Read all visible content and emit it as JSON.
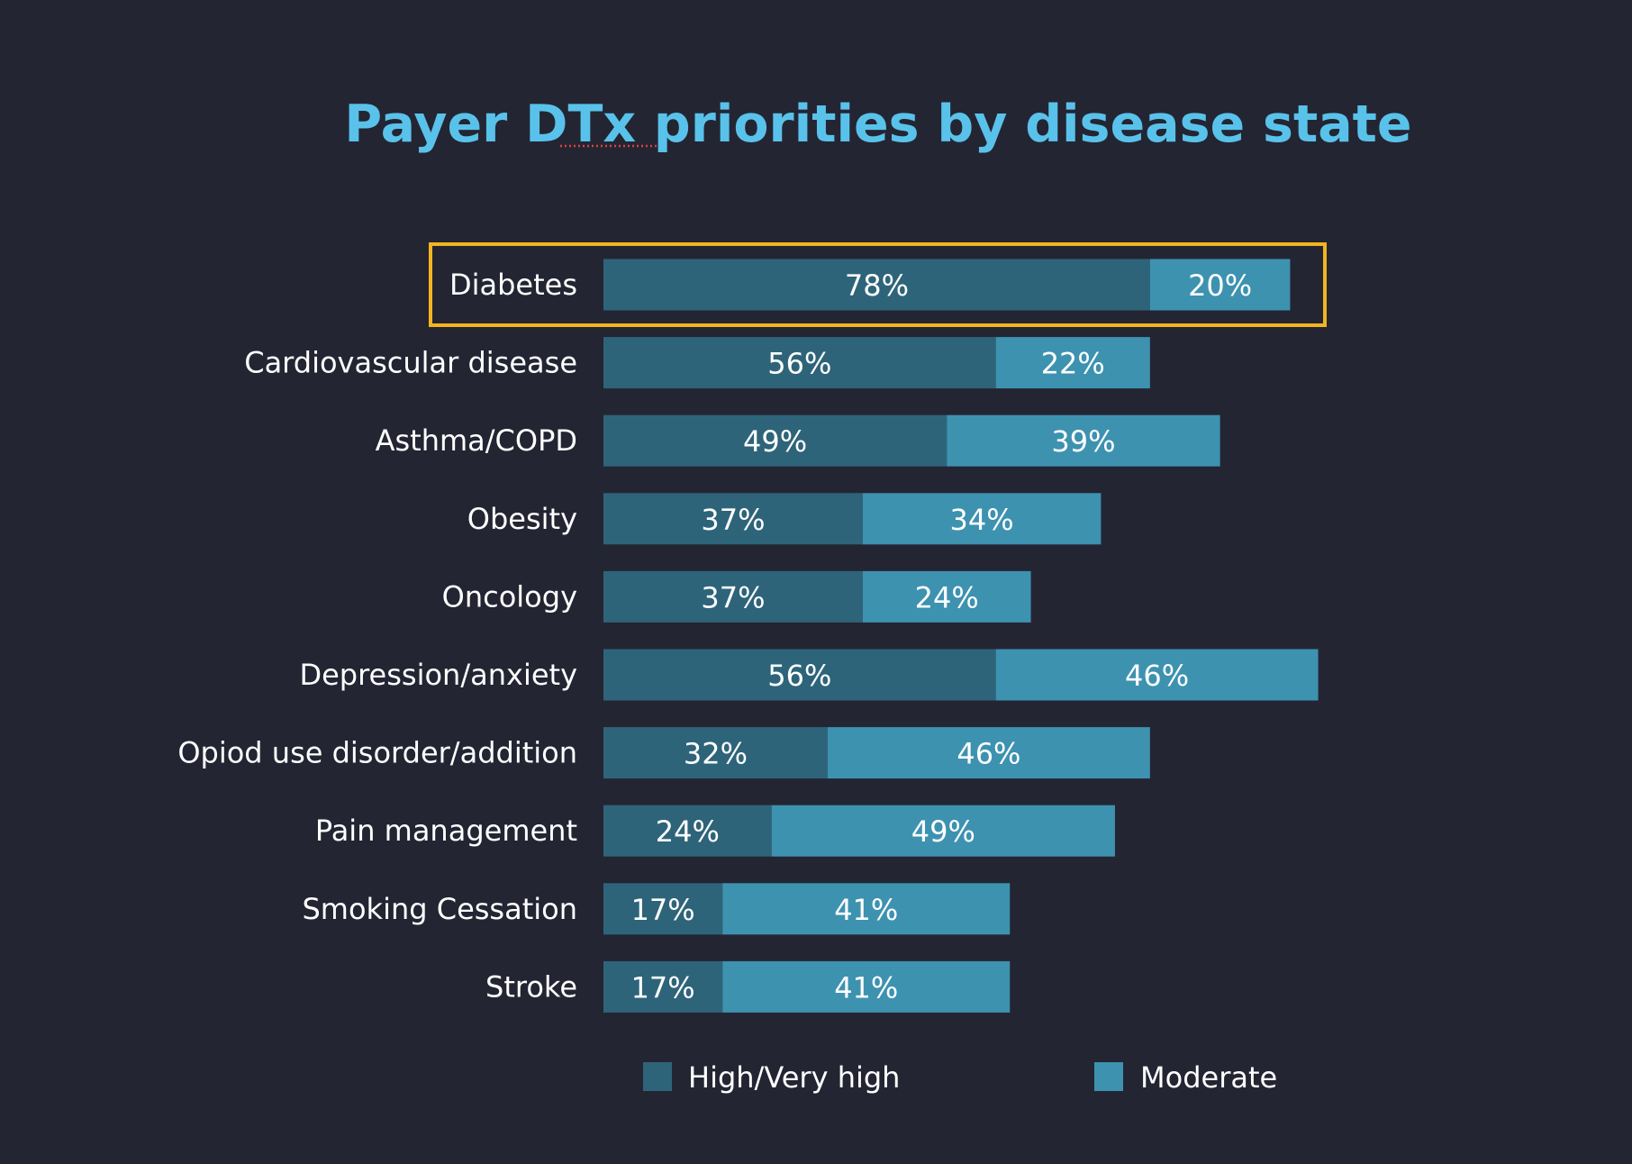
{
  "colors": {
    "background": "#242533",
    "title": "#59c2ea",
    "high": "#2e6479",
    "moderate": "#3d92b0",
    "highlight_box": "#f2b51f",
    "text": "#ffffff",
    "spellcheck_underline": "#d9453c"
  },
  "chart_data": {
    "type": "bar",
    "orientation": "horizontal",
    "stacked": true,
    "title": "Payer DTx priorities by disease state",
    "value_unit": "%",
    "categories": [
      "Diabetes",
      "Cardiovascular disease",
      "Asthma/COPD",
      "Obesity",
      "Oncology",
      "Depression/anxiety",
      "Opiod use disorder/addition",
      "Pain management",
      "Smoking Cessation",
      "Stroke"
    ],
    "series": [
      {
        "name": "High/Very high",
        "color": "#2e6479",
        "values": [
          78,
          56,
          49,
          37,
          37,
          56,
          32,
          24,
          17,
          17
        ]
      },
      {
        "name": "Moderate",
        "color": "#3d92b0",
        "values": [
          20,
          22,
          39,
          34,
          24,
          46,
          46,
          49,
          41,
          41
        ]
      }
    ],
    "highlighted_category": "Diabetes",
    "grid": false,
    "axes_visible": false,
    "legend_position": "bottom"
  }
}
